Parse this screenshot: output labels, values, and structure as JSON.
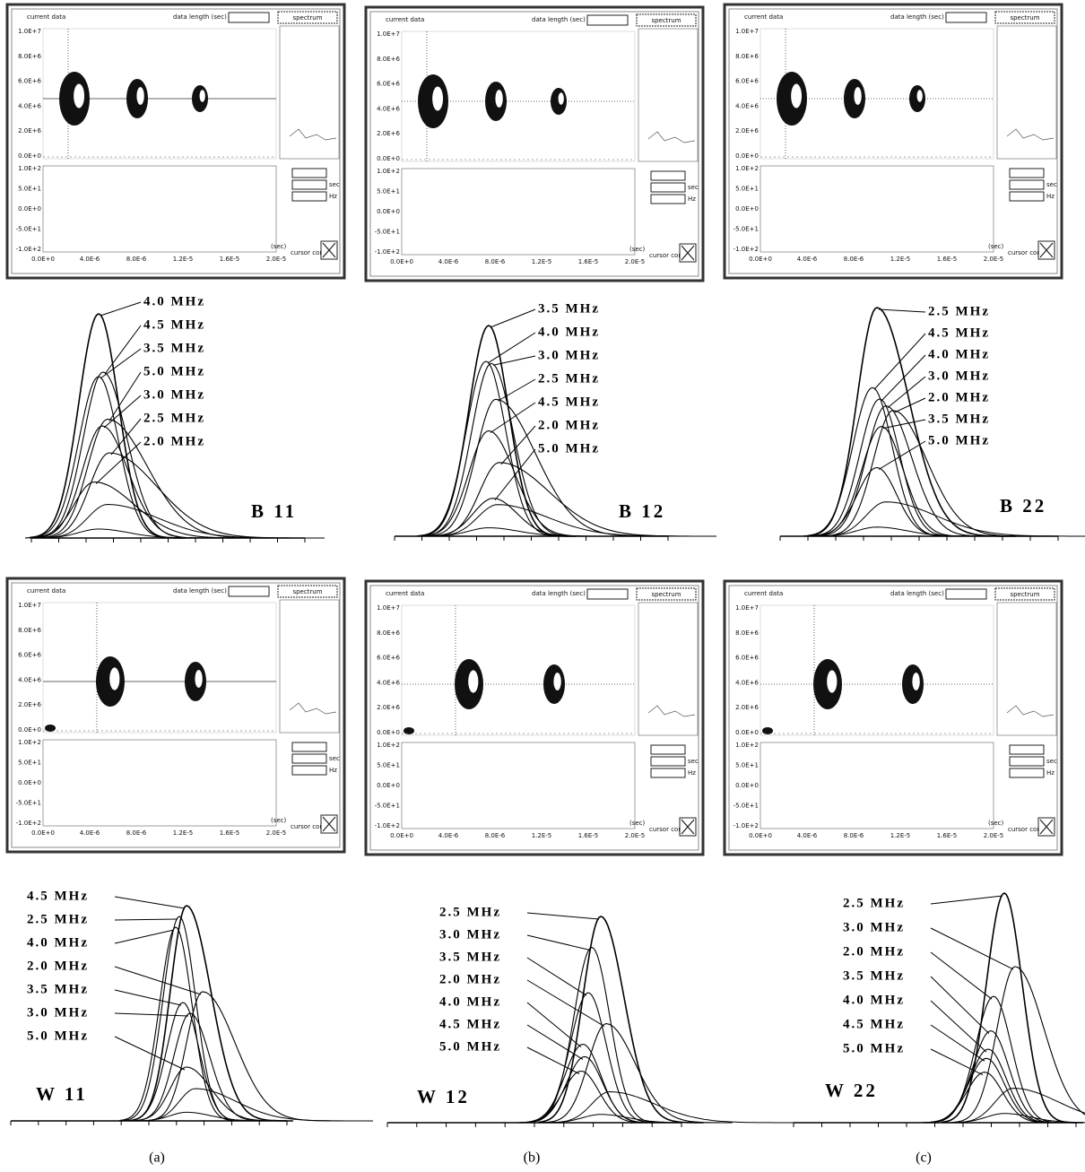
{
  "screen": {
    "current_data": "current data",
    "data_length": "data length (sec)",
    "spectrum": "spectrum",
    "cursor_control": "cursor control",
    "x_unit": "(sec)",
    "hz": "Hz",
    "sec": "sec",
    "yticks_top": [
      "1.0E+7",
      "8.0E+6",
      "6.0E+6",
      "4.0E+6",
      "2.0E+6",
      "0.0E+0"
    ],
    "yticks_bottom": [
      "1.0E+2",
      "5.0E+1",
      "0.0E+0",
      "-5.0E+1",
      "-1.0E+2"
    ],
    "xticks": [
      "0.0E+0",
      "4.0E-6",
      "8.0E-6",
      "1.2E-5",
      "1.6E-5",
      "2.0E-5"
    ]
  },
  "panels": [
    {
      "label": "B 11",
      "freqs": [
        "4.0 MHz",
        "4.5 MHz",
        "3.5 MHz",
        "5.0 MHz",
        "3.0 MHz",
        "2.5 MHz",
        "2.0 MHz"
      ]
    },
    {
      "label": "B 12",
      "freqs": [
        "3.5 MHz",
        "4.0 MHz",
        "3.0 MHz",
        "2.5 MHz",
        "4.5 MHz",
        "2.0 MHz",
        "5.0 MHz"
      ]
    },
    {
      "label": "B 22",
      "freqs": [
        "2.5 MHz",
        "4.5 MHz",
        "4.0 MHz",
        "3.0 MHz",
        "2.0 MHz",
        "3.5 MHz",
        "5.0 MHz"
      ]
    },
    {
      "label": "W 11",
      "freqs": [
        "4.5 MHz",
        "2.5 MHz",
        "4.0 MHz",
        "2.0 MHz",
        "3.5 MHz",
        "3.0 MHz",
        "5.0 MHz"
      ]
    },
    {
      "label": "W 12",
      "freqs": [
        "2.5 MHz",
        "3.0 MHz",
        "3.5 MHz",
        "2.0 MHz",
        "4.0 MHz",
        "4.5 MHz",
        "5.0 MHz"
      ]
    },
    {
      "label": "W 22",
      "freqs": [
        "2.5 MHz",
        "3.0 MHz",
        "2.0 MHz",
        "3.5 MHz",
        "4.0 MHz",
        "4.5 MHz",
        "5.0 MHz"
      ]
    }
  ],
  "captions": [
    "(a)",
    "(b)",
    "(c)"
  ]
}
